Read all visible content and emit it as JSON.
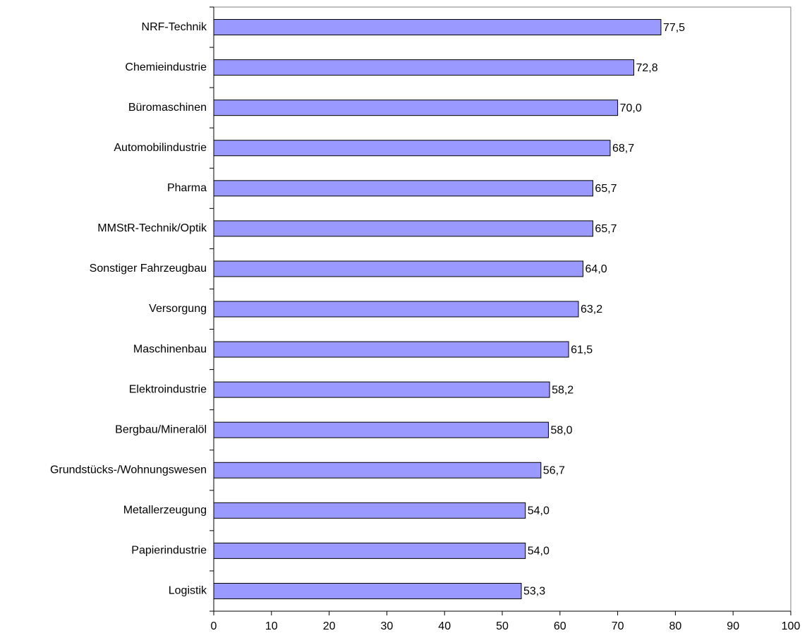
{
  "chart_data": {
    "type": "hbar",
    "categories": [
      "NRF-Technik",
      "Chemieindustrie",
      "Büromaschinen",
      "Automobilindustrie",
      "Pharma",
      "MMStR-Technik/Optik",
      "Sonstiger Fahrzeugbau",
      "Versorgung",
      "Maschinenbau",
      "Elektroindustrie",
      "Bergbau/Mineralöl",
      "Grundstücks-/Wohnungswesen",
      "Metallerzeugung",
      "Papierindustrie",
      "Logistik"
    ],
    "values": [
      77.5,
      72.8,
      70.0,
      68.7,
      65.7,
      65.7,
      64.0,
      63.2,
      61.5,
      58.2,
      58.0,
      56.7,
      54.0,
      54.0,
      53.3
    ],
    "value_labels": [
      "77,5",
      "72,8",
      "70,0",
      "68,7",
      "65,7",
      "65,7",
      "64,0",
      "63,2",
      "61,5",
      "58,2",
      "58,0",
      "56,7",
      "54,0",
      "54,0",
      "53,3"
    ],
    "color": "#9999ff",
    "xlim": [
      0,
      100
    ],
    "xticks": [
      0,
      10,
      20,
      30,
      40,
      50,
      60,
      70,
      80,
      90,
      100
    ]
  }
}
